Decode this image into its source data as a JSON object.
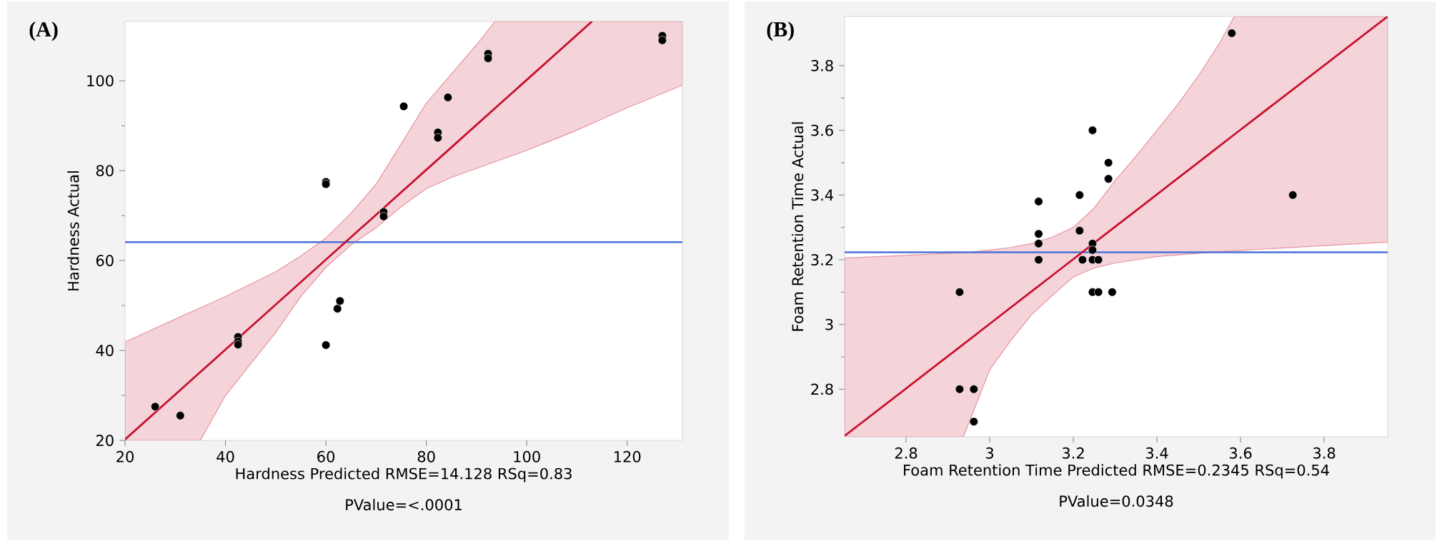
{
  "chart_data": [
    {
      "type": "scatter",
      "title": "(A)",
      "xlabel": "Hardness Predicted RMSE=14.128 RSq=0.83",
      "ylabel": "Hardness Actual",
      "annotations": [
        "PValue=<.0001"
      ],
      "xlim": [
        20,
        131
      ],
      "ylim": [
        20,
        113.2
      ],
      "xticks": [
        20,
        40,
        60,
        80,
        100,
        120
      ],
      "yticks": [
        20,
        40,
        60,
        80,
        100
      ],
      "ref_lines": [
        {
          "axis": "y",
          "value": 64.1,
          "color": "#4a70d8"
        }
      ],
      "series": [
        {
          "marker": "circle",
          "color": "#000000",
          "x": [
            26,
            31,
            42.5,
            42.5,
            42.5,
            60,
            60,
            60,
            62.3,
            62.8,
            71.5,
            71.5,
            75.5,
            82.3,
            82.3,
            84.3,
            92.3,
            92.3,
            127,
            127
          ],
          "values": [
            27.5,
            25.5,
            43,
            42,
            41.3,
            77.5,
            77,
            41.2,
            49.3,
            51,
            70.8,
            69.8,
            94.3,
            88.5,
            87.3,
            96.3,
            106,
            105,
            110,
            109
          ]
        },
        {
          "type": "line",
          "color": "#c8102e",
          "x": [
            20,
            35,
            40,
            50,
            55,
            60,
            65,
            70,
            75,
            80,
            85,
            90,
            93.7,
            100,
            110,
            113,
            120,
            131
          ],
          "values": [
            20.2,
            35.2,
            40.2,
            50.2,
            55.2,
            60.2,
            65.2,
            70.2,
            75.2,
            80.2,
            85.2,
            90.2,
            93.9,
            100.2,
            110.2,
            113.2,
            null,
            null
          ],
          "lower": [
            20,
            20,
            30,
            44,
            52,
            58.5,
            63.5,
            67.3,
            72,
            76,
            78.5,
            80.5,
            82,
            84.5,
            89,
            90.5,
            94,
            99
          ],
          "upper": [
            41.9,
            49.5,
            52,
            57.5,
            61,
            65,
            70.5,
            77,
            86,
            95,
            101.5,
            108,
            113.2,
            113.2,
            113.2,
            113.2,
            113.2,
            113.2
          ]
        }
      ]
    },
    {
      "type": "scatter",
      "title": "(B)",
      "xlabel": "Foam Retention Time Predicted RMSE=0.2345 RSq=0.54",
      "ylabel": "Foam Retention Time Actual",
      "annotations": [
        "PValue=0.0348"
      ],
      "xlim": [
        2.653,
        3.952
      ],
      "ylim": [
        2.653,
        3.952
      ],
      "xticks": [
        2.8,
        3,
        3.2,
        3.4,
        3.6,
        3.8
      ],
      "yticks": [
        2.8,
        3,
        3.2,
        3.4,
        3.6,
        3.8
      ],
      "ref_lines": [
        {
          "axis": "y",
          "value": 3.223,
          "color": "#4a70d8"
        }
      ],
      "series": [
        {
          "marker": "circle",
          "color": "#000000",
          "x": [
            2.928,
            2.928,
            2.962,
            2.962,
            3.117,
            3.117,
            3.117,
            3.117,
            3.215,
            3.215,
            3.222,
            3.246,
            3.246,
            3.246,
            3.246,
            3.26,
            3.246,
            3.26,
            3.293,
            3.284,
            3.284,
            3.579,
            3.725
          ],
          "values": [
            3.1,
            2.8,
            2.8,
            2.7,
            3.38,
            3.28,
            3.25,
            3.2,
            3.4,
            3.29,
            3.2,
            3.6,
            3.25,
            3.23,
            3.2,
            3.2,
            3.1,
            3.1,
            3.1,
            3.5,
            3.45,
            3.9,
            3.4
          ]
        },
        {
          "type": "line",
          "color": "#c8102e",
          "x": [
            2.653,
            2.937,
            3.0,
            3.05,
            3.1,
            3.15,
            3.2,
            3.25,
            3.3,
            3.35,
            3.4,
            3.45,
            3.5,
            3.55,
            3.585,
            3.952
          ],
          "values": [
            2.656,
            2.939,
            3.002,
            3.052,
            3.102,
            3.152,
            3.202,
            3.252,
            3.302,
            3.352,
            3.402,
            3.452,
            3.502,
            3.552,
            3.587,
            3.952
          ],
          "lower": [
            2.653,
            2.653,
            2.86,
            2.95,
            3.03,
            3.09,
            3.147,
            3.175,
            3.19,
            3.2,
            3.21,
            3.215,
            3.22,
            3.225,
            3.228,
            3.255
          ],
          "upper": [
            3.205,
            3.222,
            3.23,
            3.238,
            3.25,
            3.27,
            3.3,
            3.36,
            3.445,
            3.52,
            3.6,
            3.68,
            3.77,
            3.87,
            3.952,
            3.952
          ]
        }
      ]
    }
  ]
}
